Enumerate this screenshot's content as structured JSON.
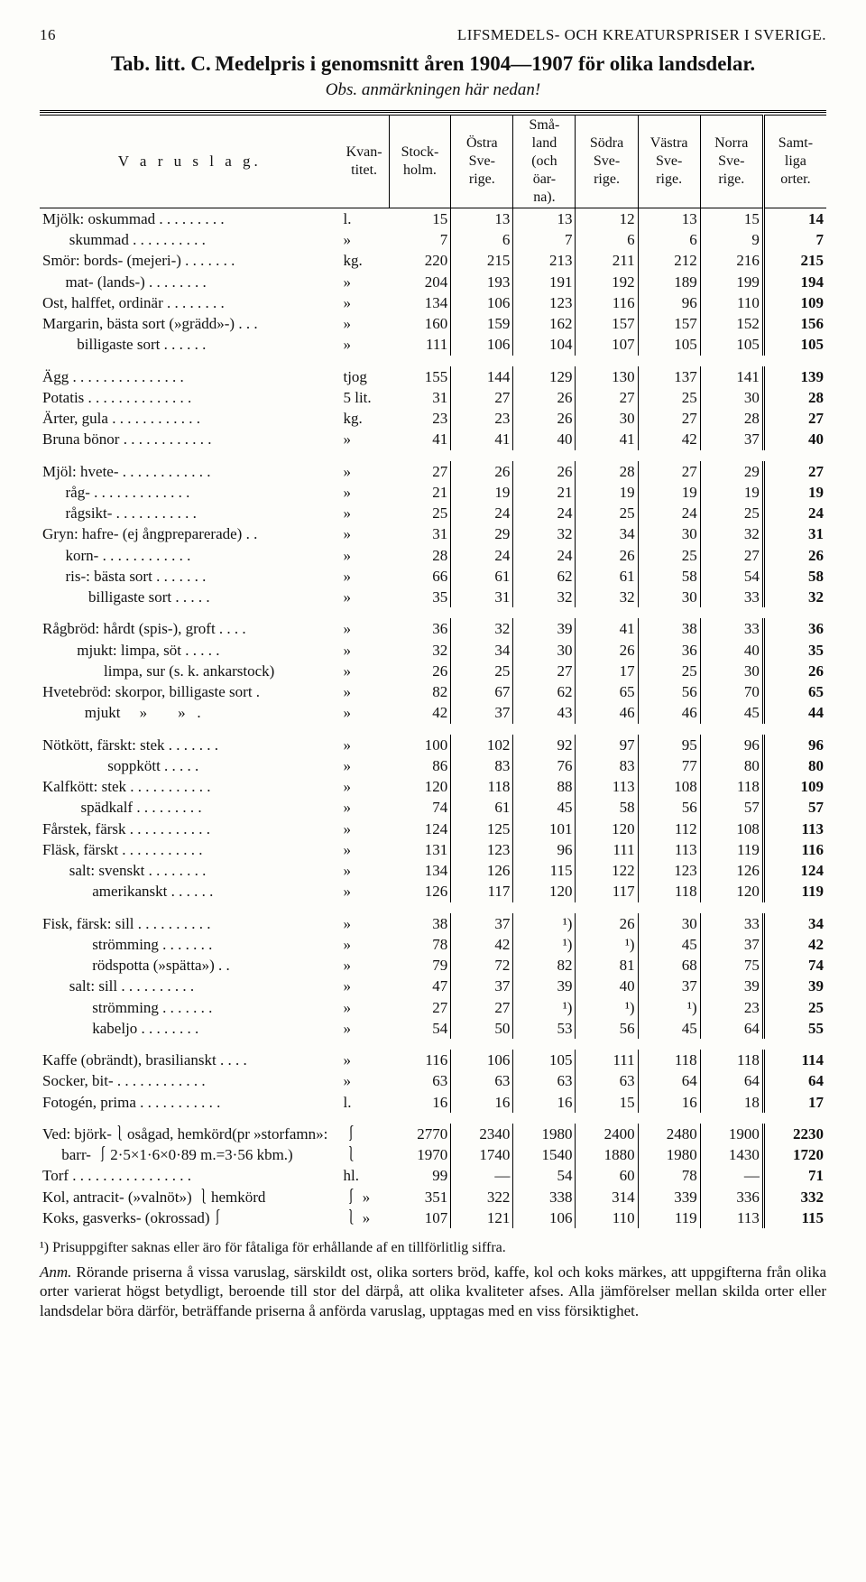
{
  "header": {
    "page_number": "16",
    "running": "LIFSMEDELS- OCH KREATURSPRISER I SVERIGE."
  },
  "title": {
    "tab": "Tab. litt. C.",
    "main": "Medelpris i genomsnitt åren 1904—1907 för olika landsdelar.",
    "sub": "Obs. anmärkningen här nedan!"
  },
  "columns": {
    "varu": "V a r u s l a g.",
    "kvant": "Kvan-\ntitet.",
    "c1": "Stock-\nholm.",
    "c2": "Östra\nSve-\nrige.",
    "c3": "Små-\nland\n(och\nöar-\nna).",
    "c4": "Södra\nSve-\nrige.",
    "c5": "Västra\nSve-\nrige.",
    "c6": "Norra\nSve-\nrige.",
    "c7": "Samt-\nliga\norter."
  },
  "rows": [
    {
      "label": "Mjölk: oskummad . . . . . . . . .",
      "unit": "l.",
      "v": [
        "15",
        "13",
        "13",
        "12",
        "13",
        "15",
        "14"
      ]
    },
    {
      "label": "       skummad . . . . . . . . . .",
      "unit": "»",
      "v": [
        "7",
        "6",
        "7",
        "6",
        "6",
        "9",
        "7"
      ]
    },
    {
      "label": "Smör: bords- (mejeri-) . . . . . . .",
      "unit": "kg.",
      "v": [
        "220",
        "215",
        "213",
        "211",
        "212",
        "216",
        "215"
      ]
    },
    {
      "label": "      mat- (lands-) . . . . . . . .",
      "unit": "»",
      "v": [
        "204",
        "193",
        "191",
        "192",
        "189",
        "199",
        "194"
      ]
    },
    {
      "label": "Ost, halffet, ordinär . . . . . . . .",
      "unit": "»",
      "v": [
        "134",
        "106",
        "123",
        "116",
        "96",
        "110",
        "109"
      ]
    },
    {
      "label": "Margarin, bästa sort (»grädd»-) . . .",
      "unit": "»",
      "v": [
        "160",
        "159",
        "162",
        "157",
        "157",
        "152",
        "156"
      ]
    },
    {
      "label": "         billigaste sort . . . . . .",
      "unit": "»",
      "v": [
        "111",
        "106",
        "104",
        "107",
        "105",
        "105",
        "105"
      ]
    },
    {
      "spacer": true
    },
    {
      "label": "Ägg . . . . . . . . . . . . . . .",
      "unit": "tjog",
      "v": [
        "155",
        "144",
        "129",
        "130",
        "137",
        "141",
        "139"
      ]
    },
    {
      "label": "Potatis . . . . . . . . . . . . . .",
      "unit": "5 lit.",
      "v": [
        "31",
        "27",
        "26",
        "27",
        "25",
        "30",
        "28"
      ]
    },
    {
      "label": "Ärter, gula . . . . . . . . . . . .",
      "unit": "kg.",
      "v": [
        "23",
        "23",
        "26",
        "30",
        "27",
        "28",
        "27"
      ]
    },
    {
      "label": "Bruna bönor . . . . . . . . . . . .",
      "unit": "»",
      "v": [
        "41",
        "41",
        "40",
        "41",
        "42",
        "37",
        "40"
      ]
    },
    {
      "spacer": true
    },
    {
      "label": "Mjöl: hvete- . . . . . . . . . . . .",
      "unit": "»",
      "v": [
        "27",
        "26",
        "26",
        "28",
        "27",
        "29",
        "27"
      ]
    },
    {
      "label": "      råg- . . . . . . . . . . . . .",
      "unit": "»",
      "v": [
        "21",
        "19",
        "21",
        "19",
        "19",
        "19",
        "19"
      ]
    },
    {
      "label": "      rågsikt- . . . . . . . . . . .",
      "unit": "»",
      "v": [
        "25",
        "24",
        "24",
        "25",
        "24",
        "25",
        "24"
      ]
    },
    {
      "label": "Gryn: hafre- (ej ångpreparerade) . .",
      "unit": "»",
      "v": [
        "31",
        "29",
        "32",
        "34",
        "30",
        "32",
        "31"
      ]
    },
    {
      "label": "      korn- . . . . . . . . . . . .",
      "unit": "»",
      "v": [
        "28",
        "24",
        "24",
        "26",
        "25",
        "27",
        "26"
      ]
    },
    {
      "label": "      ris-: bästa sort . . . . . . .",
      "unit": "»",
      "v": [
        "66",
        "61",
        "62",
        "61",
        "58",
        "54",
        "58"
      ]
    },
    {
      "label": "            billigaste sort . . . . .",
      "unit": "»",
      "v": [
        "35",
        "31",
        "32",
        "32",
        "30",
        "33",
        "32"
      ]
    },
    {
      "spacer": true
    },
    {
      "label": "Rågbröd: hårdt (spis-), groft . . . .",
      "unit": "»",
      "v": [
        "36",
        "32",
        "39",
        "41",
        "38",
        "33",
        "36"
      ]
    },
    {
      "label": "         mjukt: limpa, söt . . . . .",
      "unit": "»",
      "v": [
        "32",
        "34",
        "30",
        "26",
        "36",
        "40",
        "35"
      ]
    },
    {
      "label": "                limpa, sur (s. k. ankarstock)",
      "unit": "»",
      "v": [
        "26",
        "25",
        "27",
        "17",
        "25",
        "30",
        "26"
      ]
    },
    {
      "label": "Hvetebröd: skorpor, billigaste sort .",
      "unit": "»",
      "v": [
        "82",
        "67",
        "62",
        "65",
        "56",
        "70",
        "65"
      ]
    },
    {
      "label": "           mjukt     »        »   .",
      "unit": "»",
      "v": [
        "42",
        "37",
        "43",
        "46",
        "46",
        "45",
        "44"
      ]
    },
    {
      "spacer": true
    },
    {
      "label": "Nötkött, färskt: stek . . . . . . .",
      "unit": "»",
      "v": [
        "100",
        "102",
        "92",
        "97",
        "95",
        "96",
        "96"
      ]
    },
    {
      "label": "                 soppkött . . . . .",
      "unit": "»",
      "v": [
        "86",
        "83",
        "76",
        "83",
        "77",
        "80",
        "80"
      ]
    },
    {
      "label": "Kalfkött: stek . . . . . . . . . . .",
      "unit": "»",
      "v": [
        "120",
        "118",
        "88",
        "113",
        "108",
        "118",
        "109"
      ]
    },
    {
      "label": "          spädkalf . . . . . . . . .",
      "unit": "»",
      "v": [
        "74",
        "61",
        "45",
        "58",
        "56",
        "57",
        "57"
      ]
    },
    {
      "label": "Fårstek, färsk . . . . . . . . . . .",
      "unit": "»",
      "v": [
        "124",
        "125",
        "101",
        "120",
        "112",
        "108",
        "113"
      ]
    },
    {
      "label": "Fläsk, färskt . . . . . . . . . . .",
      "unit": "»",
      "v": [
        "131",
        "123",
        "96",
        "111",
        "113",
        "119",
        "116"
      ]
    },
    {
      "label": "       salt: svenskt . . . . . . . .",
      "unit": "»",
      "v": [
        "134",
        "126",
        "115",
        "122",
        "123",
        "126",
        "124"
      ]
    },
    {
      "label": "             amerikanskt . . . . . .",
      "unit": "»",
      "v": [
        "126",
        "117",
        "120",
        "117",
        "118",
        "120",
        "119"
      ]
    },
    {
      "spacer": true
    },
    {
      "label": "Fisk, färsk: sill . . . . . . . . . .",
      "unit": "»",
      "v": [
        "38",
        "37",
        "¹)",
        "26",
        "30",
        "33",
        "34"
      ]
    },
    {
      "label": "             strömming . . . . . . .",
      "unit": "»",
      "v": [
        "78",
        "42",
        "¹)",
        "¹)",
        "45",
        "37",
        "42"
      ]
    },
    {
      "label": "             rödspotta (»spätta») . .",
      "unit": "»",
      "v": [
        "79",
        "72",
        "82",
        "81",
        "68",
        "75",
        "74"
      ]
    },
    {
      "label": "       salt: sill . . . . . . . . . .",
      "unit": "»",
      "v": [
        "47",
        "37",
        "39",
        "40",
        "37",
        "39",
        "39"
      ]
    },
    {
      "label": "             strömming . . . . . . .",
      "unit": "»",
      "v": [
        "27",
        "27",
        "¹)",
        "¹)",
        "¹)",
        "23",
        "25"
      ]
    },
    {
      "label": "             kabeljo . . . . . . . .",
      "unit": "»",
      "v": [
        "54",
        "50",
        "53",
        "56",
        "45",
        "64",
        "55"
      ]
    },
    {
      "spacer": true
    },
    {
      "label": "Kaffe (obrändt), brasilianskt . . . .",
      "unit": "»",
      "v": [
        "116",
        "106",
        "105",
        "111",
        "118",
        "118",
        "114"
      ]
    },
    {
      "label": "Socker, bit- . . . . . . . . . . . .",
      "unit": "»",
      "v": [
        "63",
        "63",
        "63",
        "63",
        "64",
        "64",
        "64"
      ]
    },
    {
      "label": "Fotogén, prima . . . . . . . . . . .",
      "unit": "l.",
      "v": [
        "16",
        "16",
        "16",
        "15",
        "16",
        "18",
        "17"
      ]
    },
    {
      "spacer": true
    },
    {
      "label": "Ved: björk-⎱osågad, hemkörd(pr »storfamn»:",
      "unit": "⎰",
      "v": [
        "2770",
        "2340",
        "1980",
        "2400",
        "2480",
        "1900",
        "2230"
      ]
    },
    {
      "label": "     barr- ⎰2·5×1·6×0·89 m.=3·56 kbm.)",
      "unit": "⎱",
      "v": [
        "1970",
        "1740",
        "1540",
        "1880",
        "1980",
        "1430",
        "1720"
      ]
    },
    {
      "label": "Torf . . . . . . . . . . . . . . . .",
      "unit": "hl.",
      "v": [
        "99",
        "—",
        "54",
        "60",
        "78",
        "—",
        "71"
      ]
    },
    {
      "label": "Kol, antracit- (»valnöt») ⎱hemkörd",
      "unit": "⎰ »",
      "v": [
        "351",
        "322",
        "338",
        "314",
        "339",
        "336",
        "332"
      ]
    },
    {
      "label": "Koks, gasverks- (okrossad)⎰",
      "unit": "⎱ »",
      "v": [
        "107",
        "121",
        "106",
        "110",
        "119",
        "113",
        "115"
      ]
    }
  ],
  "footnote": "¹) Prisuppgifter saknas eller äro för fåtaliga för erhållande af en tillförlitlig siffra.",
  "anm": {
    "lead": "Anm.",
    "text": "Rörande priserna å vissa varuslag, särskildt ost, olika sorters bröd, kaffe, kol och koks märkes, att uppgifterna från olika orter varierat högst betydligt, beroende till stor del därpå, att olika kvaliteter afses. Alla jämförelser mellan skilda orter eller landsdelar böra därför, beträffande priserna å anförda varuslag, upptagas med en viss försiktighet."
  }
}
